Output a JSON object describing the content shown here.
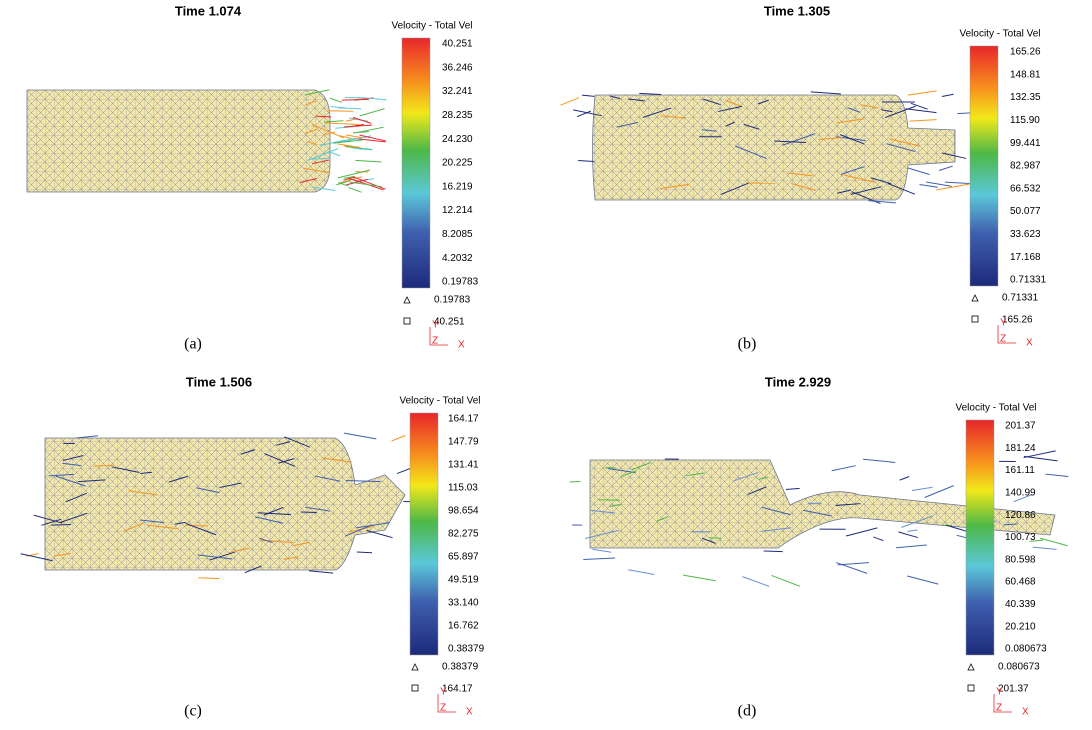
{
  "panels": [
    {
      "title": "Time 1.074",
      "legend_title": "Velocity - Total Vel",
      "scale_labels": [
        "40.251",
        "36.246",
        "32.241",
        "28.235",
        "24.230",
        "20.225",
        "16.219",
        "12.214",
        "8.2085",
        "4.2032",
        "0.19783"
      ],
      "min_label": "0.19783",
      "max_label": "40.251",
      "axis_labels": [
        "Y",
        "Z",
        "X"
      ],
      "caption": "(a)"
    },
    {
      "title": "Time 1.305",
      "legend_title": "Velocity - Total Vel",
      "scale_labels": [
        "165.26",
        "148.81",
        "132.35",
        "115.90",
        "99.441",
        "82.987",
        "66.532",
        "50.077",
        "33.623",
        "17.168",
        "0.71331"
      ],
      "min_label": "0.71331",
      "max_label": "165.26",
      "axis_labels": [
        "Y",
        "Z",
        "X"
      ],
      "caption": "(b)"
    },
    {
      "title": "Time 1.506",
      "legend_title": "Velocity - Total Vel",
      "scale_labels": [
        "164.17",
        "147.79",
        "131.41",
        "115.03",
        "98.654",
        "82.275",
        "65.897",
        "49.519",
        "33.140",
        "16.762",
        "0.38379"
      ],
      "min_label": "0.38379",
      "max_label": "164.17",
      "axis_labels": [
        "Y",
        "Z",
        "X"
      ],
      "caption": "(c)"
    },
    {
      "title": "Time 2.929",
      "legend_title": "Velocity - Total Vel",
      "scale_labels": [
        "201.37",
        "181.24",
        "161.11",
        "140.99",
        "120.86",
        "100.73",
        "80.598",
        "60.468",
        "40.339",
        "20.210",
        "0.080673"
      ],
      "min_label": "0.080673",
      "max_label": "201.37",
      "axis_labels": [
        "Y",
        "Z",
        "X"
      ],
      "caption": "(d)"
    }
  ]
}
